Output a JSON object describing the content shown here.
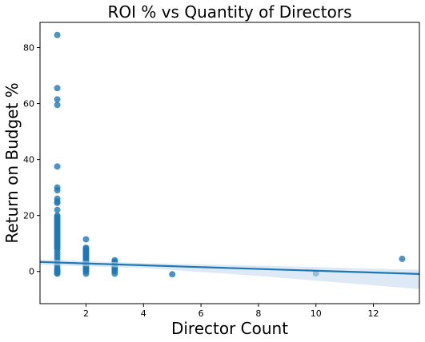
{
  "chart_data": {
    "type": "scatter",
    "title": "ROI % vs Quantity of Directors",
    "xlabel": "Director Count",
    "ylabel": "Return on Budget %",
    "color": "#1f77b4",
    "x": [
      1,
      1,
      1,
      1,
      1,
      1,
      1,
      1,
      1,
      1,
      1,
      1,
      1,
      1,
      1,
      1,
      1,
      1,
      1,
      1,
      1,
      1,
      1,
      1,
      1,
      1,
      1,
      1,
      1,
      1,
      1,
      1,
      1,
      1,
      1,
      1,
      1,
      1,
      1,
      1,
      1,
      1,
      1,
      1,
      1,
      1,
      1,
      2,
      2,
      2,
      2,
      2,
      2,
      2,
      2,
      2,
      2,
      2,
      2,
      2,
      2,
      2,
      2,
      2,
      2,
      2,
      2,
      3,
      3,
      3,
      3,
      3,
      3,
      3,
      3,
      3,
      3,
      5,
      10,
      13
    ],
    "values": [
      84.5,
      65.5,
      61.5,
      59.5,
      37.5,
      30,
      29,
      26,
      25,
      24.5,
      22,
      20,
      19.5,
      19,
      18.5,
      18,
      17.5,
      17,
      16.5,
      16,
      15.5,
      15,
      14.5,
      14,
      13.5,
      13,
      12.5,
      12,
      11.5,
      11,
      10.5,
      10,
      9.5,
      9,
      8.5,
      8,
      7,
      6,
      5,
      4,
      3,
      2,
      1,
      0,
      -0.5,
      -0.8,
      0.5,
      11.5,
      8.5,
      8,
      7.5,
      7,
      6.5,
      6,
      5.5,
      5,
      4.5,
      4,
      3.5,
      3,
      2.5,
      2,
      1.5,
      1,
      0.5,
      0,
      -0.8,
      4,
      3.5,
      3,
      2.5,
      2,
      1.5,
      1,
      0.5,
      0,
      -0.8,
      -1,
      -0.7,
      4.5
    ],
    "regression": {
      "x": [
        0.4,
        4,
        8,
        13.6
      ],
      "values": [
        3.4,
        2.2,
        0.9,
        -0.9
      ],
      "lower": [
        2.4,
        1.2,
        -1.6,
        -6.3
      ],
      "upper": [
        4.3,
        3.0,
        2.1,
        0.6
      ]
    },
    "band_color": "#c6dbef",
    "xlim": [
      0.4,
      13.6
    ],
    "ylim": [
      -11.5,
      89
    ],
    "xticks": [
      2,
      4,
      6,
      8,
      10,
      12
    ],
    "yticks": [
      0,
      20,
      40,
      60,
      80
    ],
    "grid": false
  }
}
